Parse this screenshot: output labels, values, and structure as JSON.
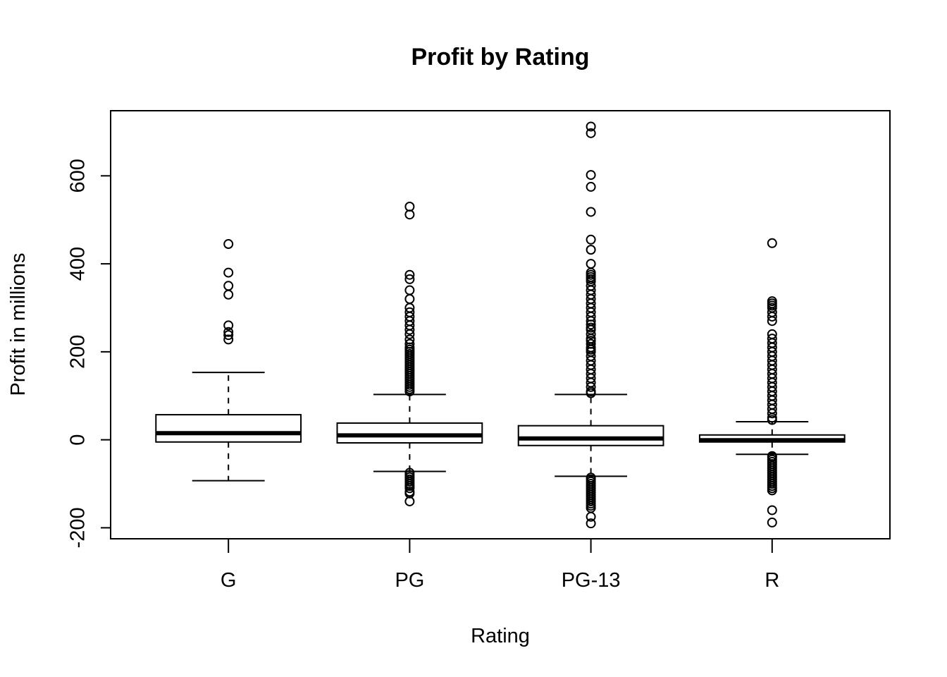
{
  "chart_data": {
    "type": "boxplot",
    "title": "Profit by Rating",
    "xlabel": "Rating",
    "ylabel": "Profit in millions",
    "ylim": [
      -225,
      748
    ],
    "y_ticks": [
      -200,
      0,
      200,
      400,
      600
    ],
    "grid": false,
    "legend": "none",
    "categories": [
      "G",
      "PG",
      "PG-13",
      "R"
    ],
    "boxes": [
      {
        "category": "G",
        "whisker_low": -93,
        "q1": -5,
        "median": 15,
        "q3": 57,
        "whisker_high": 153,
        "outliers": [
          445,
          380,
          350,
          330,
          260,
          245,
          238,
          228
        ]
      },
      {
        "category": "PG",
        "whisker_low": -72,
        "q1": -7,
        "median": 10,
        "q3": 38,
        "whisker_high": 103,
        "outliers": [
          530,
          512,
          375,
          365,
          340,
          320,
          300,
          290,
          280,
          270,
          260,
          250,
          240,
          228,
          218,
          210,
          205,
          200,
          195,
          190,
          185,
          180,
          175,
          170,
          165,
          160,
          155,
          150,
          145,
          140,
          135,
          130,
          125,
          120,
          115,
          110,
          -75,
          -80,
          -85,
          -90,
          -95,
          -100,
          -105,
          -110,
          -118,
          -122,
          -140
        ]
      },
      {
        "category": "PG-13",
        "whisker_low": -83,
        "q1": -13,
        "median": 3,
        "q3": 32,
        "whisker_high": 103,
        "outliers": [
          712,
          697,
          602,
          575,
          518,
          455,
          432,
          400,
          380,
          375,
          370,
          365,
          360,
          350,
          340,
          330,
          320,
          310,
          300,
          290,
          280,
          270,
          262,
          255,
          250,
          240,
          230,
          225,
          218,
          210,
          205,
          200,
          190,
          180,
          170,
          160,
          150,
          140,
          130,
          120,
          110,
          106,
          -86,
          -90,
          -95,
          -100,
          -105,
          -110,
          -115,
          -120,
          -125,
          -130,
          -135,
          -140,
          -145,
          -150,
          -155,
          -175,
          -190
        ]
      },
      {
        "category": "R",
        "whisker_low": -33,
        "q1": -5,
        "median": -1,
        "q3": 11,
        "whisker_high": 41,
        "outliers": [
          447,
          315,
          310,
          305,
          300,
          290,
          280,
          270,
          240,
          230,
          220,
          210,
          200,
          190,
          180,
          170,
          160,
          150,
          140,
          130,
          120,
          110,
          100,
          90,
          80,
          70,
          60,
          50,
          45,
          -37,
          -40,
          -45,
          -50,
          -55,
          -60,
          -65,
          -70,
          -75,
          -80,
          -85,
          -90,
          -95,
          -100,
          -105,
          -110,
          -115,
          -160,
          -188
        ]
      }
    ]
  }
}
